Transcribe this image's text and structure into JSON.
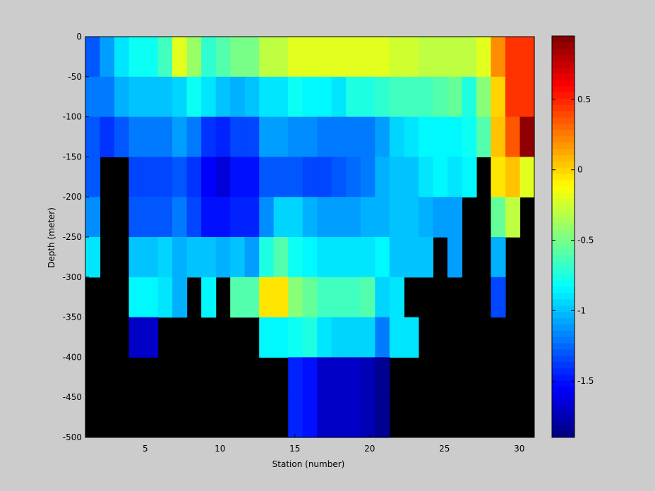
{
  "chart_data": {
    "type": "heatmap",
    "title": "",
    "xlabel": "Station (number)",
    "ylabel": "Depth (meter)",
    "xlim": [
      1,
      31
    ],
    "ylim": [
      -500,
      0
    ],
    "x_ticks": [
      5,
      10,
      15,
      20,
      25,
      30
    ],
    "y_ticks": [
      0,
      -50,
      -100,
      -150,
      -200,
      -250,
      -300,
      -350,
      -400,
      -450,
      -500
    ],
    "colorbar": {
      "colormap": "jet",
      "min": -1.9,
      "max": 0.95,
      "ticks": [
        0.5,
        0,
        -0.5,
        -1,
        -1.5
      ],
      "tick_labels": [
        "0.5",
        "0",
        "-0.5",
        "-1",
        "-1.5"
      ]
    },
    "no_data_color": "#000000",
    "depths": [
      0,
      -25,
      -75,
      -125,
      -175,
      -225,
      -275,
      -325,
      -375,
      -425,
      -475
    ],
    "stations": [
      1,
      2,
      3,
      4,
      5,
      6,
      7,
      8,
      9,
      10,
      11,
      12,
      13,
      14,
      15,
      16,
      17,
      18,
      19,
      20,
      21,
      22,
      23,
      24,
      25,
      26,
      27,
      28,
      29,
      30,
      31
    ],
    "values": [
      [
        -1.5,
        -1.4,
        -0.85,
        -0.6,
        -0.6,
        -0.5,
        -0.05,
        -0.3,
        -0.4,
        -0.5,
        -0.5,
        -0.5,
        -0.2,
        -0.2,
        -0.1,
        -0.2,
        -0.2,
        -0.2,
        -0.15,
        -0.15,
        -0.2,
        -0.2,
        -0.2,
        -0.2,
        -0.2,
        -0.2,
        -0.2,
        0.05,
        0.3,
        0.45,
        0.45
      ],
      [
        -1.3,
        -1.1,
        -0.9,
        -0.8,
        -0.8,
        -0.65,
        -0.2,
        -0.4,
        -0.7,
        -0.6,
        -0.5,
        -0.5,
        -0.3,
        -0.3,
        -0.2,
        -0.2,
        -0.2,
        -0.2,
        -0.2,
        -0.2,
        -0.2,
        -0.25,
        -0.25,
        -0.3,
        -0.3,
        -0.3,
        -0.3,
        -0.2,
        0.2,
        0.45,
        0.45
      ],
      [
        -1.2,
        -1.2,
        -1.05,
        -1.0,
        -1.0,
        -1.0,
        -0.95,
        -0.8,
        -0.9,
        -1.0,
        -1.05,
        -1.0,
        -0.9,
        -0.9,
        -0.8,
        -0.85,
        -0.85,
        -0.9,
        -0.75,
        -0.75,
        -0.7,
        -0.65,
        -0.65,
        -0.65,
        -0.6,
        -0.55,
        -0.75,
        -0.45,
        0.0,
        0.45,
        0.45
      ],
      [
        -1.3,
        -1.4,
        -1.3,
        -1.2,
        -1.2,
        -1.2,
        -1.1,
        -1.2,
        -1.4,
        -1.45,
        -1.35,
        -1.35,
        -1.1,
        -1.1,
        -1.15,
        -1.15,
        -1.2,
        -1.2,
        -1.2,
        -1.2,
        -1.1,
        -0.95,
        -0.9,
        -0.85,
        -0.85,
        -0.85,
        -0.8,
        -0.6,
        0.05,
        0.35,
        0.9
      ],
      [
        -1.3,
        null,
        null,
        -1.35,
        -1.35,
        -1.35,
        -1.3,
        -1.4,
        -1.55,
        -1.65,
        -1.5,
        -1.5,
        -1.3,
        -1.3,
        -1.3,
        -1.35,
        -1.35,
        -1.3,
        -1.25,
        -1.2,
        -1.05,
        -1.0,
        -1.0,
        -0.9,
        -0.85,
        -0.9,
        -0.85,
        null,
        -0.05,
        0.05,
        -0.2
      ],
      [
        -1.15,
        null,
        null,
        -1.3,
        -1.3,
        -1.3,
        -1.2,
        -1.35,
        -1.5,
        -1.5,
        -1.45,
        -1.45,
        -1.15,
        -0.95,
        -0.95,
        -1.05,
        -1.1,
        -1.1,
        -1.1,
        -1.05,
        -1.05,
        -1.0,
        -1.0,
        -1.05,
        -1.1,
        -1.1,
        null,
        null,
        -0.55,
        -0.3,
        null
      ],
      [
        -0.9,
        null,
        null,
        -1.0,
        -1.0,
        -0.95,
        -1.05,
        -1.0,
        -1.0,
        -1.05,
        -1.0,
        -1.1,
        -0.75,
        -0.6,
        -0.8,
        -0.85,
        -0.9,
        -0.9,
        -0.9,
        -0.9,
        -0.85,
        -1.0,
        -1.0,
        -1.0,
        null,
        -1.1,
        null,
        null,
        -1.05,
        null,
        null
      ],
      [
        null,
        null,
        null,
        -0.85,
        -0.85,
        -0.9,
        -1.05,
        null,
        -0.85,
        null,
        -0.6,
        -0.6,
        -0.05,
        -0.05,
        -0.45,
        -0.55,
        -0.65,
        -0.65,
        -0.65,
        -0.6,
        -0.95,
        -0.9,
        null,
        null,
        null,
        null,
        null,
        null,
        -1.35,
        null,
        null
      ],
      [
        null,
        null,
        null,
        -1.7,
        -1.7,
        null,
        null,
        null,
        null,
        null,
        null,
        null,
        -0.85,
        -0.85,
        -0.8,
        -0.75,
        -0.9,
        -0.95,
        -0.95,
        -0.95,
        -1.2,
        -0.9,
        -0.9,
        null,
        null,
        null,
        null,
        null,
        null,
        null,
        null
      ],
      [
        null,
        null,
        null,
        null,
        null,
        null,
        null,
        null,
        null,
        null,
        null,
        null,
        null,
        null,
        -1.45,
        -1.5,
        -1.7,
        -1.7,
        -1.7,
        -1.75,
        -1.85,
        null,
        null,
        null,
        null,
        null,
        null,
        null,
        null,
        null,
        null
      ],
      [
        null,
        null,
        null,
        null,
        null,
        null,
        null,
        null,
        null,
        null,
        null,
        null,
        null,
        null,
        -1.45,
        -1.5,
        -1.7,
        -1.7,
        -1.7,
        -1.75,
        -1.85,
        null,
        null,
        null,
        null,
        null,
        null,
        null,
        null,
        null,
        null
      ]
    ]
  }
}
